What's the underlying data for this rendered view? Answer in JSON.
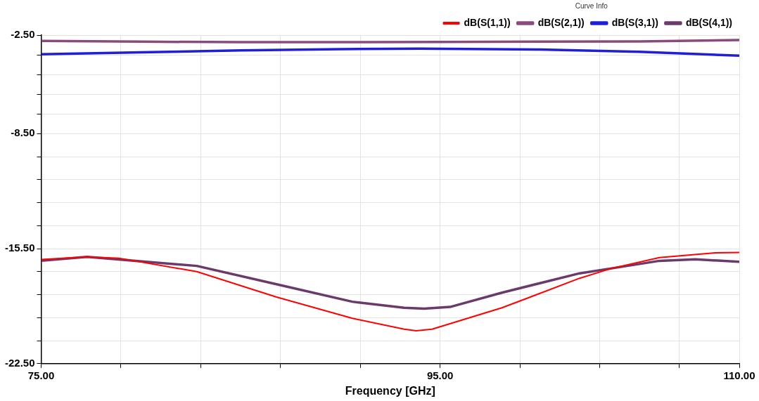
{
  "chart_data": {
    "type": "line",
    "xlabel": "Frequency [GHz]",
    "legend_title": "Curve Info",
    "legend": "top right",
    "grid": true,
    "marker": "none",
    "line_style": "solid",
    "xlim": [
      75,
      110
    ],
    "ylim": [
      -22.5,
      -2.5
    ],
    "xticks": [
      {
        "value": 75,
        "label": "75.00"
      },
      {
        "value": 79,
        "label": null
      },
      {
        "value": 83,
        "label": null
      },
      {
        "value": 87,
        "label": null
      },
      {
        "value": 91,
        "label": null
      },
      {
        "value": 95,
        "label": "95.00"
      },
      {
        "value": 99,
        "label": null
      },
      {
        "value": 103,
        "label": null
      },
      {
        "value": 107,
        "label": null
      },
      {
        "value": 110,
        "label": "110.00"
      }
    ],
    "yticks": [
      {
        "value": -22.5,
        "label": "-22.50"
      },
      {
        "value": -21.1,
        "label": null
      },
      {
        "value": -19.7,
        "label": null
      },
      {
        "value": -18.3,
        "label": null
      },
      {
        "value": -16.9,
        "label": null
      },
      {
        "value": -15.5,
        "label": "-15.50"
      },
      {
        "value": -14.1,
        "label": null
      },
      {
        "value": -12.7,
        "label": null
      },
      {
        "value": -11.3,
        "label": null
      },
      {
        "value": -9.9,
        "label": null
      },
      {
        "value": -8.5,
        "label": "-8.50"
      },
      {
        "value": -7.3,
        "label": null
      },
      {
        "value": -6.1,
        "label": null
      },
      {
        "value": -4.9,
        "label": null
      },
      {
        "value": -3.7,
        "label": null
      },
      {
        "value": -2.5,
        "label": "-2.50"
      }
    ],
    "series": [
      {
        "name": "dB(S(1,1))",
        "color": "#ff0000",
        "x": [
          75,
          77.3,
          78.9,
          82.8,
          86.8,
          90.6,
          93.2,
          93.8,
          94.6,
          98.1,
          102,
          103.6,
          106,
          108.8,
          110
        ],
        "values": [
          -16.16,
          -16.0,
          -16.08,
          -16.9,
          -18.45,
          -19.74,
          -20.4,
          -20.5,
          -20.4,
          -19.1,
          -17.3,
          -16.7,
          -16.04,
          -15.75,
          -15.73
        ]
      },
      {
        "name": "dB(S(2,1))",
        "color": "#8b4a7e",
        "x": [
          75,
          80,
          85,
          90,
          95,
          100,
          105,
          110
        ],
        "values": [
          -2.85,
          -2.9,
          -2.93,
          -2.93,
          -2.92,
          -2.9,
          -2.88,
          -2.8
        ]
      },
      {
        "name": "dB(S(3,1))",
        "color": "#1f1fd8",
        "x": [
          75,
          80,
          85,
          90,
          94,
          100,
          105,
          110
        ],
        "values": [
          -3.67,
          -3.55,
          -3.43,
          -3.35,
          -3.32,
          -3.38,
          -3.52,
          -3.75
        ]
      },
      {
        "name": "dB(S(4,1))",
        "color": "#6b3a6b",
        "x": [
          75,
          77.3,
          82.8,
          86.8,
          90.6,
          93.2,
          94.2,
          95.5,
          98.1,
          102,
          103.6,
          106,
          107.8,
          110
        ],
        "values": [
          -16.24,
          -16.0,
          -16.55,
          -17.67,
          -18.73,
          -19.1,
          -19.15,
          -19.05,
          -18.18,
          -17.0,
          -16.7,
          -16.24,
          -16.15,
          -16.3
        ]
      }
    ]
  }
}
